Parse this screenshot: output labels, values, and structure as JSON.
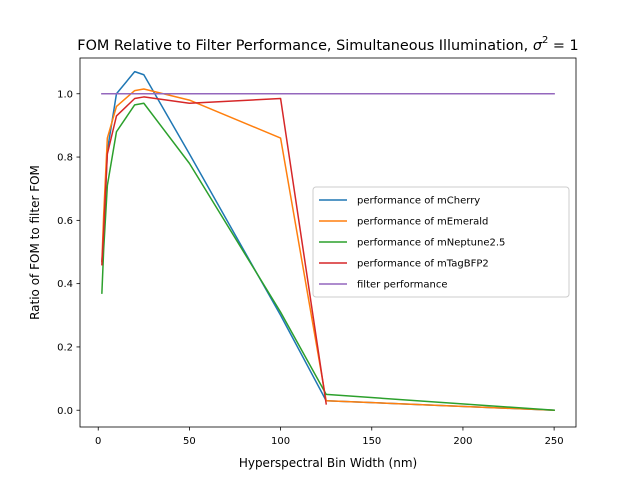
{
  "chart_data": {
    "type": "line",
    "title_main": "FOM Relative to Filter Performance, Simultaneous Illumination, ",
    "title_sigma": "σ",
    "title_sup": "2",
    "title_tail": " = 1",
    "xlabel": "Hyperspectral Bin Width (nm)",
    "ylabel": "Ratio of FOM to filter FOM",
    "xlim": [
      -10,
      262
    ],
    "ylim": [
      -0.053,
      1.113
    ],
    "xticks": [
      0,
      50,
      100,
      150,
      200,
      250
    ],
    "yticks": [
      0.0,
      0.2,
      0.4,
      0.6,
      0.8,
      1.0
    ],
    "xtick_labels": [
      "0",
      "50",
      "100",
      "150",
      "200",
      "250"
    ],
    "ytick_labels": [
      "0.0",
      "0.2",
      "0.4",
      "0.6",
      "0.8",
      "1.0"
    ],
    "grid": false,
    "legend_position": "center-right",
    "series": [
      {
        "name": "performance of mCherry",
        "color": "#1f77b4",
        "x": [
          2,
          3,
          5,
          10,
          20,
          25,
          50,
          100,
          125,
          250
        ],
        "y": [
          0.47,
          0.55,
          0.82,
          1.0,
          1.07,
          1.06,
          0.81,
          0.3,
          0.03,
          0.0
        ]
      },
      {
        "name": "performance of mEmerald",
        "color": "#ff7f0e",
        "x": [
          2,
          3,
          5,
          10,
          20,
          25,
          50,
          100,
          125,
          250
        ],
        "y": [
          0.47,
          0.62,
          0.86,
          0.96,
          1.01,
          1.015,
          0.98,
          0.86,
          0.03,
          0.0
        ]
      },
      {
        "name": "performance of mNeptune2.5",
        "color": "#2ca02c",
        "x": [
          2,
          3,
          5,
          10,
          20,
          25,
          50,
          100,
          125,
          250
        ],
        "y": [
          0.37,
          0.51,
          0.71,
          0.88,
          0.965,
          0.97,
          0.78,
          0.31,
          0.05,
          0.0
        ]
      },
      {
        "name": "performance of mTagBFP2",
        "color": "#d62728",
        "x": [
          2,
          3,
          5,
          10,
          20,
          25,
          50,
          100,
          125
        ],
        "y": [
          0.46,
          0.57,
          0.81,
          0.93,
          0.985,
          0.99,
          0.97,
          0.985,
          0.02
        ]
      },
      {
        "name": "filter performance",
        "color": "#9467bd",
        "x": [
          2,
          250
        ],
        "y": [
          1.0,
          1.0
        ]
      }
    ]
  }
}
